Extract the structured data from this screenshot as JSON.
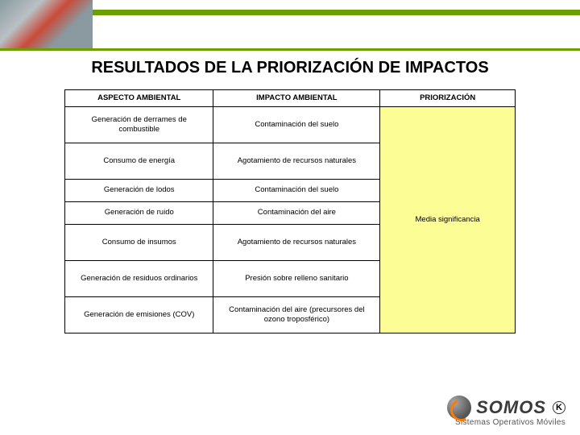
{
  "header": {
    "title": "RESULTADOS DE LA PRIORIZACIÓN DE IMPACTOS"
  },
  "table": {
    "columns": [
      "ASPECTO AMBIENTAL",
      "IMPACTO AMBIENTAL",
      "PRIORIZACIÓN"
    ],
    "rows": [
      {
        "aspecto": "Generación de derrames de combustible",
        "impacto": "Contaminación del suelo",
        "height": "row-h"
      },
      {
        "aspecto": "Consumo de energía",
        "impacto": "Agotamiento de recursos naturales",
        "height": "row-h"
      },
      {
        "aspecto": "Generación de lodos",
        "impacto": "Contaminación del suelo",
        "height": "row-m"
      },
      {
        "aspecto": "Generación de ruido",
        "impacto": "Contaminación del aire",
        "height": "row-m"
      },
      {
        "aspecto": "Consumo de insumos",
        "impacto": "Agotamiento de recursos naturales",
        "height": "row-h"
      },
      {
        "aspecto": "Generación de residuos ordinarios",
        "impacto": "Presión sobre relleno sanitario",
        "height": "row-h"
      },
      {
        "aspecto": "Generación de emisiones (COV)",
        "impacto": "Contaminación del aire (precursores del ozono troposférico)",
        "height": "row-h"
      }
    ],
    "priorizacion_label": "Media significancia",
    "priorizacion_bg": "#fdfd96",
    "border_color": "#000000",
    "font_size": 9.5
  },
  "branding": {
    "logo_text": "SOMOS",
    "logo_sub": "Sistemas Operativos Móviles",
    "badge": "K",
    "accent_color": "#ff7a00",
    "stripe_color": "#6d9e00"
  }
}
